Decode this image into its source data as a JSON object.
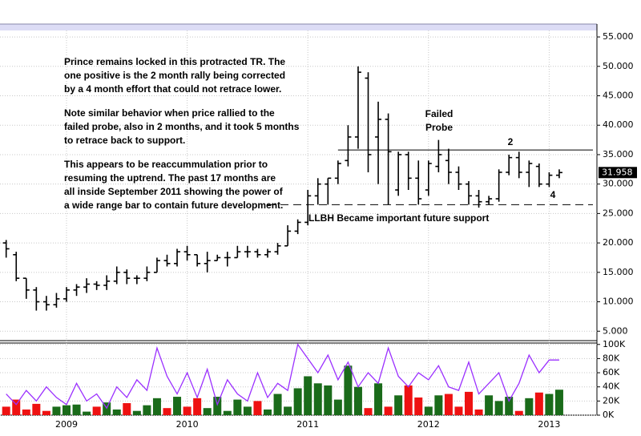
{
  "chart_data": [
    {
      "type": "ohlc",
      "categories": [
        null,
        null,
        null,
        null,
        null,
        null,
        "2009",
        null,
        null,
        null,
        null,
        null,
        null,
        null,
        null,
        null,
        null,
        null,
        "2010",
        null,
        null,
        null,
        null,
        null,
        null,
        null,
        null,
        null,
        null,
        null,
        "2011",
        null,
        null,
        null,
        null,
        null,
        null,
        null,
        null,
        null,
        null,
        null,
        "2012",
        null,
        null,
        null,
        null,
        null,
        null,
        null,
        null,
        null,
        null,
        null,
        "2013",
        null
      ],
      "open": [
        20,
        18,
        14,
        12,
        10,
        9.5,
        10.5,
        12,
        12.5,
        13,
        12.8,
        13.5,
        15,
        14,
        14,
        15,
        17,
        16.5,
        18.5,
        18,
        16.5,
        17,
        17.5,
        17.5,
        18.5,
        18.5,
        18,
        18.5,
        19.5,
        22,
        23.5,
        28,
        30,
        31,
        34,
        38,
        48,
        38,
        41,
        29,
        35,
        31,
        29,
        33,
        34,
        32,
        30,
        28,
        27,
        27.5,
        32,
        34.5,
        32,
        33,
        30,
        31.5
      ],
      "high": [
        20.5,
        18.5,
        14,
        12.5,
        11,
        11.5,
        12.5,
        13,
        14,
        13.5,
        14.5,
        16,
        15.5,
        14.5,
        16,
        17.5,
        18,
        19,
        19.5,
        18,
        18.5,
        18,
        18.5,
        19.5,
        19.5,
        19,
        19,
        20,
        23,
        24,
        29,
        31,
        31,
        34,
        40,
        50,
        49,
        44,
        42,
        35.5,
        35.5,
        34,
        34,
        37.5,
        36,
        33,
        30.5,
        29,
        28,
        32.5,
        35,
        35.5,
        34,
        33.5,
        32,
        32.5
      ],
      "low": [
        17.5,
        13.5,
        10.5,
        8.5,
        8.5,
        9,
        10,
        11,
        11.5,
        12,
        12,
        13,
        13,
        13,
        13.5,
        15,
        16,
        16,
        17,
        16,
        15,
        17,
        16,
        17.5,
        17.5,
        17.5,
        17.5,
        18,
        19.5,
        21.5,
        23,
        26.5,
        26.5,
        30,
        33,
        36,
        32,
        30,
        26.5,
        28,
        29,
        26.5,
        28,
        32,
        30,
        29,
        26.5,
        26,
        26.5,
        27,
        31.5,
        31,
        29.5,
        29.5,
        29.5,
        31
      ],
      "close": [
        19,
        14,
        12,
        10,
        9.5,
        10.5,
        12,
        12.5,
        13,
        12.8,
        13.5,
        15,
        14,
        14,
        15,
        17,
        16.5,
        18.5,
        18,
        16.5,
        17,
        17.5,
        17.5,
        18.5,
        18.5,
        18,
        18.5,
        19.5,
        22,
        23.5,
        28,
        30,
        31,
        33.5,
        38,
        49,
        35,
        41,
        35.5,
        35,
        31,
        27.5,
        33.5,
        35,
        32,
        30,
        28,
        27,
        27.5,
        32,
        34.5,
        32,
        33.5,
        30,
        31.5,
        31.958
      ],
      "color": "#000000",
      "ylim": [
        3.4,
        56.1
      ],
      "yticks": [
        {
          "value": 5,
          "label": "5.000"
        },
        {
          "value": 10,
          "label": "10.000"
        },
        {
          "value": 15,
          "label": "15.000"
        },
        {
          "value": 20,
          "label": "20.000"
        },
        {
          "value": 25,
          "label": "25.000"
        },
        {
          "value": 30,
          "label": "30.000"
        },
        {
          "value": 35,
          "label": "35.000"
        },
        {
          "value": 40,
          "label": "40.000"
        },
        {
          "value": 45,
          "label": "45.000"
        },
        {
          "value": 50,
          "label": "50.000"
        },
        {
          "value": 55,
          "label": "55.000"
        }
      ],
      "grid": true,
      "lines": [
        {
          "value": 35.8,
          "start": 33,
          "style": "solid"
        },
        {
          "value": 26.5,
          "start": 26,
          "style": "dashed"
        }
      ],
      "note": [
        [
          "Prince remains locked in this protracted TR.  The",
          "one positive is the 2 month rally being corrected",
          "by a 4 month effort that could not retrace lower."
        ],
        [
          "Note similar behavior when price rallied to the",
          "failed probe, also in 2 months, and it took 5 months",
          "to retrace back to support."
        ],
        [
          "This appears to be reaccummulation prior to",
          "resuming the uptrend.  The past 17 months are",
          "all inside September 2011 showing the power of",
          "a wide range bar to contain future development."
        ]
      ],
      "annotations": {
        "probe": [
          "Failed",
          "Probe"
        ],
        "two": "2",
        "four": "4",
        "support": "LLBH Became important future support"
      }
    },
    {
      "type": "volume",
      "values": [
        12,
        22,
        8,
        16,
        6,
        12,
        14,
        15,
        5,
        12,
        18,
        8,
        17,
        6,
        14,
        24,
        10,
        26,
        12,
        24,
        10,
        26,
        6,
        22,
        12,
        20,
        8,
        30,
        12,
        38,
        55,
        45,
        42,
        22,
        70,
        40,
        10,
        45,
        12,
        28,
        42,
        25,
        12,
        28,
        30,
        12,
        33,
        8,
        28,
        20,
        26,
        6,
        24,
        32,
        30,
        36
      ],
      "up_color": "#1a6b1a",
      "down_color": "#ee1111",
      "line": {
        "color": "#9b30ff",
        "values": [
          30,
          15,
          35,
          20,
          40,
          25,
          15,
          45,
          20,
          30,
          10,
          40,
          25,
          50,
          35,
          95,
          55,
          30,
          60,
          25,
          65,
          15,
          50,
          30,
          20,
          60,
          25,
          45,
          35,
          100,
          80,
          60,
          85,
          50,
          75,
          40,
          60,
          45,
          95,
          55,
          40,
          60,
          50,
          70,
          40,
          35,
          75,
          30,
          45,
          60,
          20,
          45,
          85,
          60,
          78,
          78
        ]
      },
      "ylim": [
        0,
        102
      ],
      "yticks": [
        {
          "value": 0,
          "label": "0K"
        },
        {
          "value": 20,
          "label": "20K"
        },
        {
          "value": 40,
          "label": "40K"
        },
        {
          "value": 60,
          "label": "60K"
        },
        {
          "value": 80,
          "label": "80K"
        },
        {
          "value": 100,
          "label": "100K"
        }
      ],
      "grid": true
    }
  ]
}
